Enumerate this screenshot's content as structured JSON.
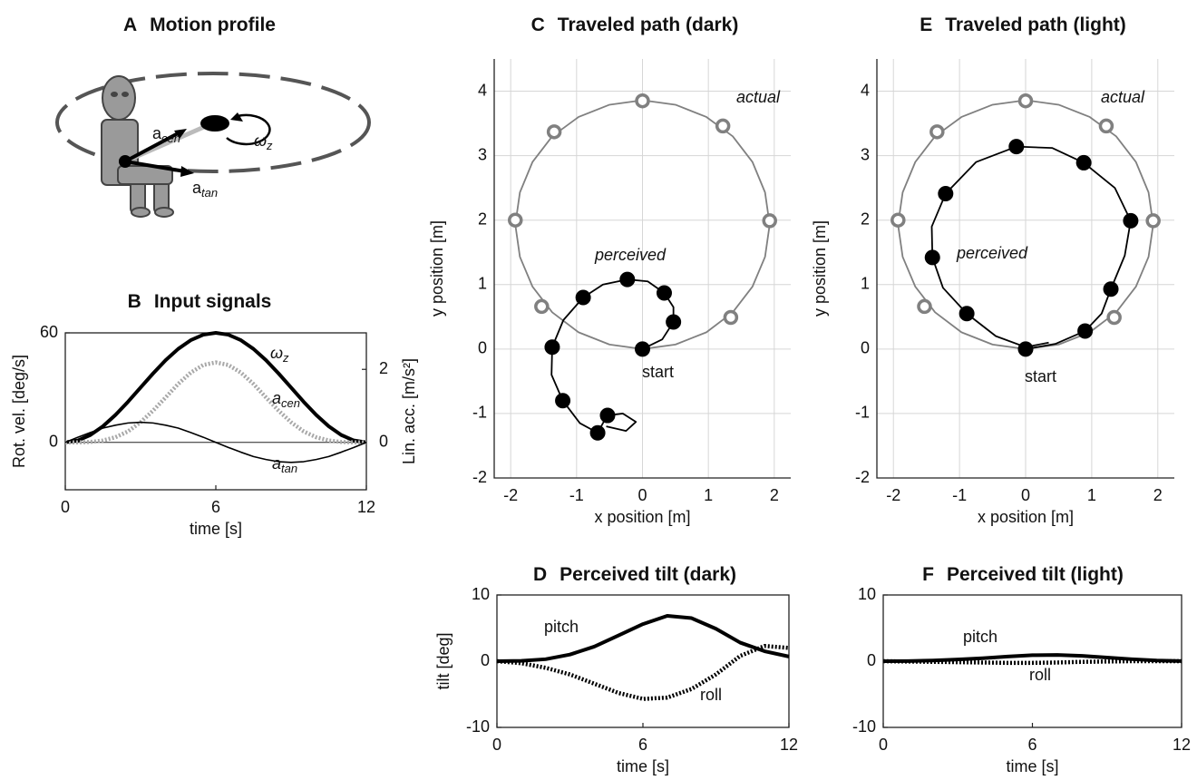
{
  "motion_profile": {
    "letter": "A",
    "title": "Motion profile",
    "labels": [
      {
        "text": "a",
        "sub": "cen"
      },
      {
        "text": "ω",
        "sub": "z"
      },
      {
        "text": "a",
        "sub": "tan"
      }
    ]
  },
  "chart_data": [
    {
      "type": "line",
      "letter": "B",
      "title": "Input signals",
      "xlabel": "time [s]",
      "ylabel": "Rot. vel. [deg/s]",
      "y2label": "Lin. acc. [m/s²]",
      "x": [
        0,
        0.5,
        1,
        1.5,
        2,
        2.5,
        3,
        3.5,
        4,
        4.5,
        5,
        5.5,
        6,
        6.5,
        7,
        7.5,
        8,
        8.5,
        9,
        9.5,
        10,
        10.5,
        11,
        11.5,
        12
      ],
      "xlim": [
        0,
        12
      ],
      "xticks": [
        0,
        6,
        12
      ],
      "ylim": [
        -26,
        60
      ],
      "yticks": [
        0,
        60
      ],
      "y2lim": [
        -1.3,
        3
      ],
      "y2ticks": [
        0,
        2
      ],
      "grid": false,
      "box": true,
      "zero_line": true,
      "series": [
        {
          "name": "ω",
          "name_sub": "z",
          "color": "#000000",
          "style": "thick",
          "values": [
            0,
            1.02,
            4.02,
            8.79,
            15,
            22.24,
            30,
            37.76,
            45,
            51.21,
            55.98,
            58.98,
            60,
            58.98,
            55.98,
            51.21,
            45,
            37.76,
            30,
            22.24,
            15,
            8.79,
            4.02,
            1.02,
            0
          ]
        },
        {
          "name": "a",
          "name_sub": "cen",
          "color": "#a8a8a8",
          "style": "dotted",
          "axis": "y2",
          "values": [
            0,
            0,
            0.01,
            0.05,
            0.14,
            0.3,
            0.55,
            0.87,
            1.23,
            1.6,
            1.91,
            2.12,
            2.19,
            2.12,
            1.91,
            1.6,
            1.23,
            0.87,
            0.55,
            0.3,
            0.14,
            0.05,
            0.01,
            0,
            0
          ]
        },
        {
          "name": "a",
          "name_sub": "tan",
          "color": "#000000",
          "style": "thin",
          "axis": "y2",
          "values": [
            0,
            0.14,
            0.27,
            0.39,
            0.47,
            0.53,
            0.55,
            0.53,
            0.47,
            0.39,
            0.27,
            0.14,
            0,
            -0.14,
            -0.27,
            -0.39,
            -0.47,
            -0.53,
            -0.55,
            -0.53,
            -0.47,
            -0.39,
            -0.27,
            -0.14,
            0
          ]
        }
      ]
    },
    {
      "type": "line",
      "letter": "C",
      "title": "Traveled path (dark)",
      "xlabel": "x position [m]",
      "ylabel": "y position [m]",
      "xlim": [
        -2.25,
        2.25
      ],
      "xticks": [
        -2,
        -1,
        0,
        1,
        2
      ],
      "ylim": [
        -2,
        4.5
      ],
      "yticks": [
        -2,
        -1,
        0,
        1,
        2,
        3,
        4
      ],
      "grid": true,
      "box": false,
      "annotations": [
        "start"
      ],
      "series": [
        {
          "name": "actual",
          "color": "#808080",
          "style": "medium",
          "marker": "open",
          "x": [
            0,
            0.5,
            0.97,
            1.37,
            1.67,
            1.86,
            1.93,
            1.86,
            1.67,
            1.37,
            0.97,
            0.5,
            0,
            -0.5,
            -0.97,
            -1.37,
            -1.67,
            -1.86,
            -1.93,
            -1.86,
            -1.67,
            -1.37,
            -0.97,
            -0.5,
            0
          ],
          "values": [
            0,
            0.07,
            0.26,
            0.57,
            0.97,
            1.43,
            1.93,
            2.43,
            2.9,
            3.3,
            3.6,
            3.79,
            3.86,
            3.79,
            3.6,
            3.3,
            2.9,
            2.43,
            1.93,
            1.43,
            0.97,
            0.57,
            0.26,
            0.07,
            0
          ],
          "marker_x": [
            1.34,
            1.93,
            1.22,
            0,
            -1.34,
            -1.93,
            -1.53
          ],
          "marker_values": [
            0.49,
            1.99,
            3.46,
            3.85,
            3.37,
            2,
            0.66
          ]
        },
        {
          "name": "perceived",
          "color": "#000000",
          "style": "medium",
          "marker": "filled",
          "x": [
            0,
            0.3,
            0.47,
            0.47,
            0.33,
            0.08,
            -0.23,
            -0.6,
            -0.9,
            -1.2,
            -1.37,
            -1.38,
            -1.21,
            -0.95,
            -0.68,
            -0.6,
            -0.53,
            -0.3,
            -0.1,
            -0.25,
            -0.55
          ],
          "values": [
            0,
            0.15,
            0.42,
            0.65,
            0.87,
            1.05,
            1.08,
            1,
            0.8,
            0.45,
            0.03,
            -0.4,
            -0.8,
            -1.15,
            -1.3,
            -1.15,
            -1.03,
            -1,
            -1.13,
            -1.27,
            -1.2
          ],
          "marker_x": [
            0,
            0.47,
            0.33,
            -0.23,
            -0.9,
            -1.37,
            -1.21,
            -0.68,
            -0.53
          ],
          "marker_values": [
            0,
            0.42,
            0.87,
            1.08,
            0.8,
            0.03,
            -0.8,
            -1.3,
            -1.03
          ]
        }
      ]
    },
    {
      "type": "line",
      "letter": "E",
      "title": "Traveled path (light)",
      "xlabel": "x position [m]",
      "ylabel": "y position [m]",
      "xlim": [
        -2.25,
        2.25
      ],
      "xticks": [
        -2,
        -1,
        0,
        1,
        2
      ],
      "ylim": [
        -2,
        4.5
      ],
      "yticks": [
        -2,
        -1,
        0,
        1,
        2,
        3,
        4
      ],
      "grid": true,
      "box": false,
      "annotations": [
        "start"
      ],
      "series": [
        {
          "name": "actual",
          "color": "#808080",
          "style": "medium",
          "marker": "open",
          "x": [
            0,
            0.5,
            0.97,
            1.37,
            1.67,
            1.86,
            1.93,
            1.86,
            1.67,
            1.37,
            0.97,
            0.5,
            0,
            -0.5,
            -0.97,
            -1.37,
            -1.67,
            -1.86,
            -1.93,
            -1.86,
            -1.67,
            -1.37,
            -0.97,
            -0.5,
            0
          ],
          "values": [
            0,
            0.07,
            0.26,
            0.57,
            0.97,
            1.43,
            1.93,
            2.43,
            2.9,
            3.3,
            3.6,
            3.79,
            3.86,
            3.79,
            3.6,
            3.3,
            2.9,
            2.43,
            1.93,
            1.43,
            0.97,
            0.57,
            0.26,
            0.07,
            0
          ],
          "marker_x": [
            1.34,
            1.93,
            1.22,
            0,
            -1.34,
            -1.93,
            -1.53
          ],
          "marker_values": [
            0.49,
            1.99,
            3.46,
            3.85,
            3.37,
            2,
            0.66
          ]
        },
        {
          "name": "perceived",
          "color": "#000000",
          "style": "medium",
          "marker": "filled",
          "x": [
            0,
            0.45,
            0.9,
            1.15,
            1.29,
            1.5,
            1.59,
            1.35,
            0.88,
            0.4,
            -0.14,
            -0.75,
            -1.21,
            -1.42,
            -1.41,
            -1.25,
            -0.89,
            -0.45,
            0,
            0.35
          ],
          "values": [
            0,
            0.08,
            0.28,
            0.55,
            0.93,
            1.45,
            1.99,
            2.5,
            2.89,
            3.12,
            3.14,
            2.9,
            2.41,
            1.9,
            1.42,
            0.95,
            0.55,
            0.2,
            0.03,
            0.1
          ],
          "marker_x": [
            0,
            0.9,
            1.29,
            1.59,
            0.88,
            -0.14,
            -1.21,
            -1.41,
            -0.89
          ],
          "marker_values": [
            0,
            0.28,
            0.93,
            1.99,
            2.89,
            3.14,
            2.41,
            1.42,
            0.55
          ]
        }
      ]
    },
    {
      "type": "line",
      "letter": "D",
      "title": "Perceived tilt (dark)",
      "xlabel": "time [s]",
      "ylabel": "tilt [deg]",
      "x": [
        0,
        1,
        2,
        3,
        4,
        5,
        6,
        7,
        8,
        9,
        10,
        11,
        12
      ],
      "xlim": [
        0,
        12
      ],
      "xticks": [
        0,
        6,
        12
      ],
      "ylim": [
        -10,
        10
      ],
      "yticks": [
        -10,
        0,
        10
      ],
      "grid": false,
      "box": true,
      "series": [
        {
          "name": "pitch",
          "color": "#000000",
          "style": "thick",
          "values": [
            0,
            0.05,
            0.3,
            1,
            2.2,
            3.9,
            5.6,
            6.85,
            6.5,
            4.9,
            2.8,
            1.5,
            0.7
          ]
        },
        {
          "name": "roll",
          "color": "#000000",
          "style": "dotted",
          "values": [
            0,
            -0.3,
            -1,
            -2,
            -3.4,
            -4.8,
            -5.7,
            -5.5,
            -4.2,
            -2,
            0.8,
            2.3,
            2
          ]
        }
      ]
    },
    {
      "type": "line",
      "letter": "F",
      "title": "Perceived tilt (light)",
      "xlabel": "time [s]",
      "x": [
        0,
        1,
        2,
        3,
        4,
        5,
        6,
        7,
        8,
        9,
        10,
        11,
        12
      ],
      "xlim": [
        0,
        12
      ],
      "xticks": [
        0,
        6,
        12
      ],
      "ylim": [
        -10,
        10
      ],
      "yticks": [
        -10,
        0,
        10
      ],
      "grid": false,
      "box": true,
      "series": [
        {
          "name": "pitch",
          "color": "#000000",
          "style": "thick",
          "values": [
            0,
            0.02,
            0.1,
            0.25,
            0.45,
            0.7,
            0.9,
            0.95,
            0.8,
            0.55,
            0.3,
            0.1,
            0.02
          ]
        },
        {
          "name": "roll",
          "color": "#000000",
          "style": "dotted",
          "values": [
            0,
            -0.05,
            -0.1,
            -0.15,
            -0.2,
            -0.25,
            -0.25,
            -0.2,
            -0.1,
            -0.05,
            0,
            0,
            0
          ]
        }
      ]
    }
  ]
}
